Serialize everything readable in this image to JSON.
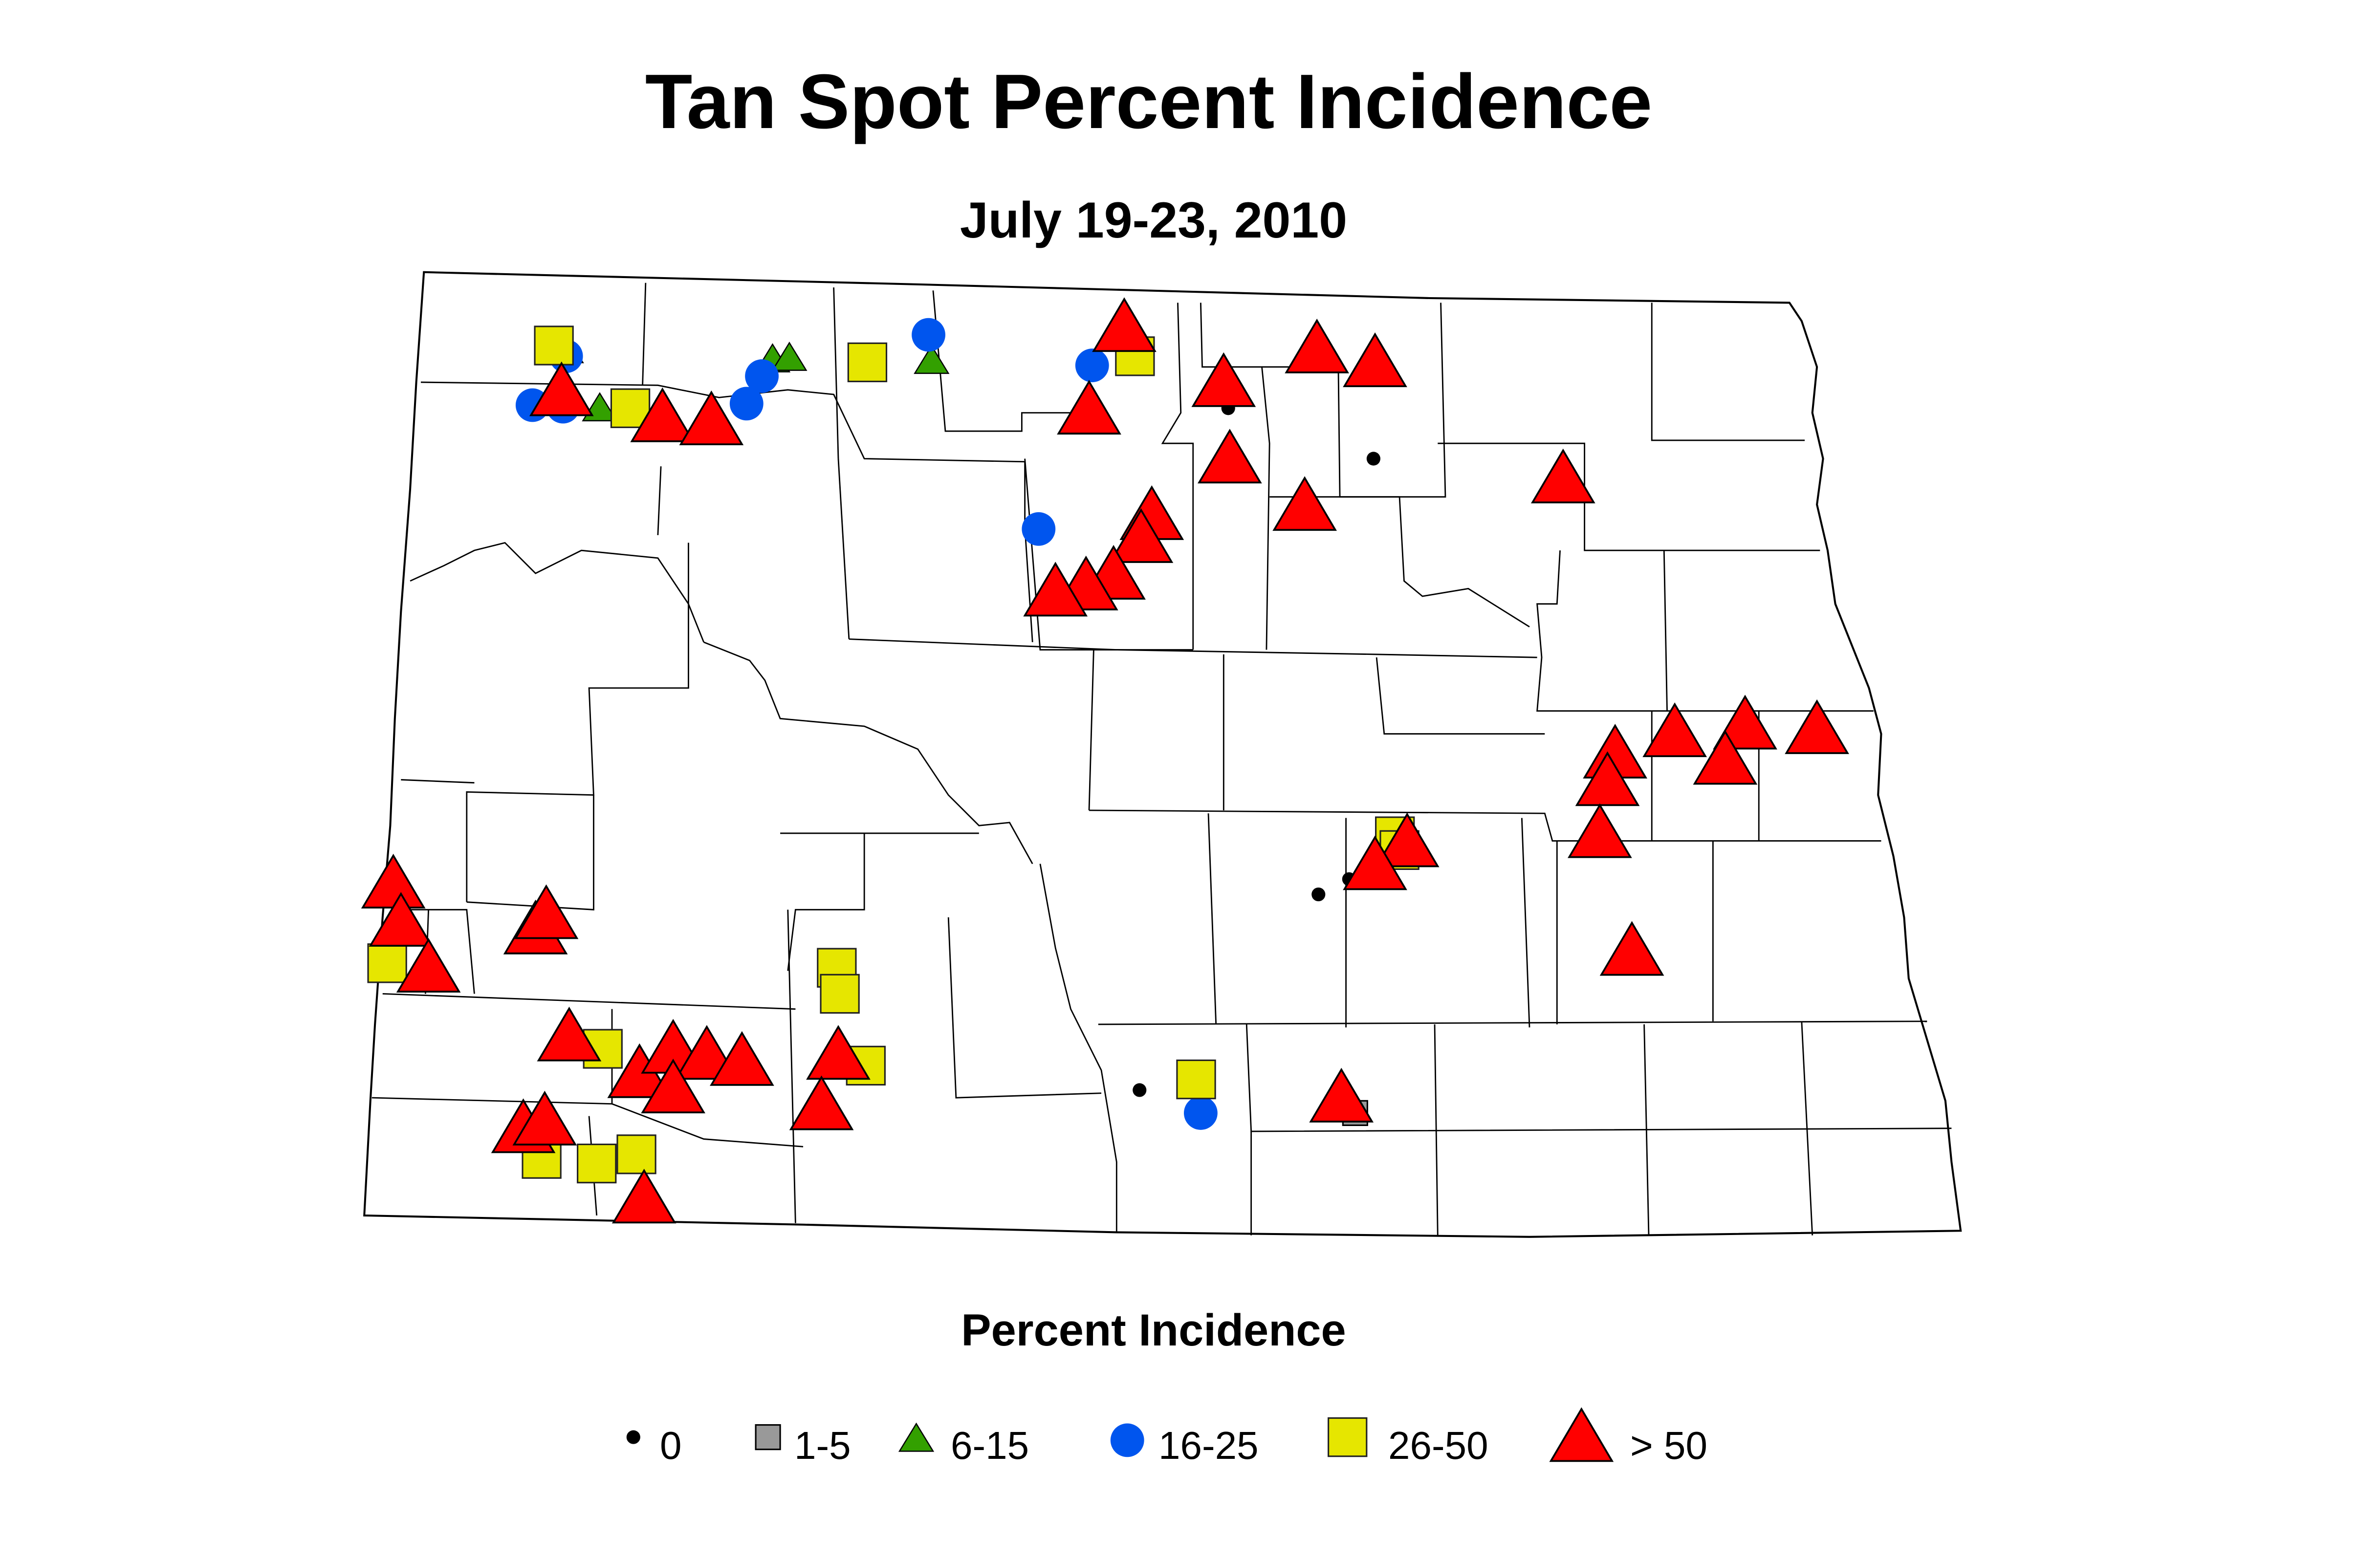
{
  "title": "Tan Spot Percent Incidence",
  "subtitle": "July 19-23, 2010",
  "legend": {
    "title": "Percent Incidence",
    "items": [
      {
        "label": "0",
        "symbol": "dot",
        "color": "#000000"
      },
      {
        "label": "1-5",
        "symbol": "square",
        "color": "#999999"
      },
      {
        "label": "6-15",
        "symbol": "triangle",
        "color": "#33a000"
      },
      {
        "label": "16-25",
        "symbol": "circle",
        "color": "#0055ee"
      },
      {
        "label": "26-50",
        "symbol": "square",
        "color": "#e6e600"
      },
      {
        "label": "> 50",
        "symbol": "triangle",
        "color": "#ff0000"
      }
    ]
  }
}
